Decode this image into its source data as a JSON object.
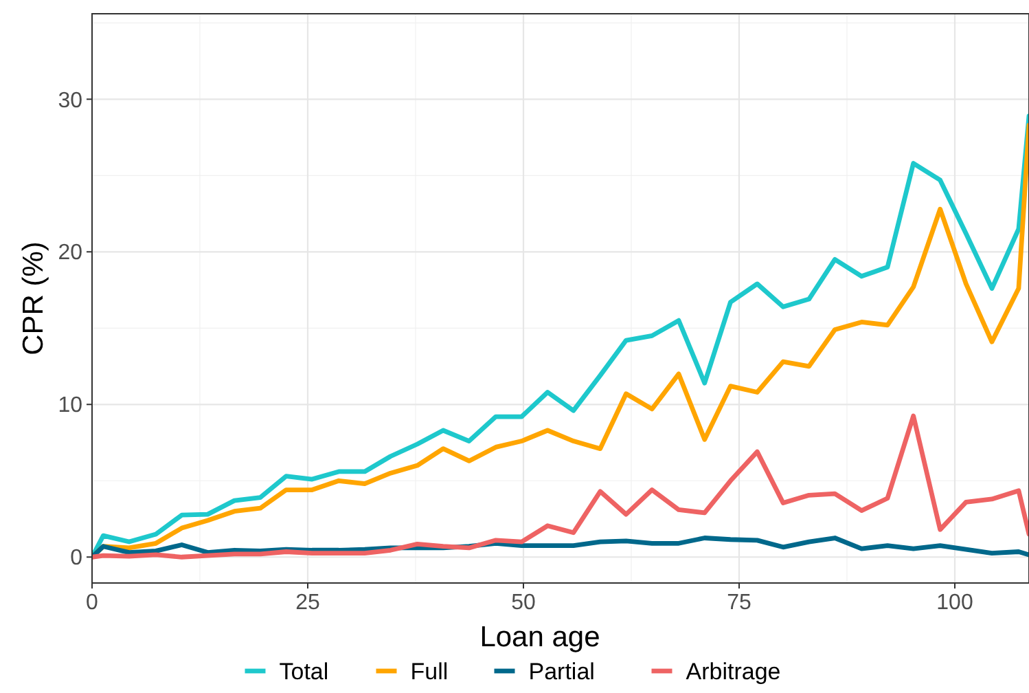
{
  "chart_data": {
    "type": "line",
    "xlabel": "Loan age",
    "ylabel": "CPR (%)",
    "x": [
      0,
      1.3,
      4.3,
      7.4,
      10.4,
      13.4,
      16.5,
      19.5,
      22.5,
      25.5,
      28.6,
      31.6,
      34.6,
      37.7,
      40.7,
      43.7,
      46.8,
      49.8,
      52.8,
      55.8,
      58.9,
      61.9,
      64.9,
      68.0,
      71.0,
      74.0,
      77.1,
      80.1,
      83.1,
      86.1,
      89.2,
      92.2,
      95.2,
      98.3,
      101.3,
      104.3,
      107.4,
      108.6
    ],
    "series": [
      {
        "name": "Total",
        "color": "#1ec8cc",
        "values": [
          0,
          1.4,
          1.0,
          1.5,
          2.75,
          2.8,
          3.7,
          3.9,
          5.3,
          5.1,
          5.6,
          5.6,
          6.6,
          7.4,
          8.3,
          7.6,
          9.2,
          9.2,
          10.8,
          9.6,
          11.9,
          14.2,
          14.5,
          15.5,
          11.4,
          16.7,
          17.9,
          16.4,
          16.9,
          19.5,
          18.4,
          19.0,
          25.8,
          24.7,
          21.2,
          17.6,
          21.5,
          28.9
        ]
      },
      {
        "name": "Full",
        "color": "#ffa500",
        "values": [
          0,
          0.7,
          0.6,
          0.9,
          1.9,
          2.4,
          3.0,
          3.2,
          4.4,
          4.4,
          5.0,
          4.8,
          5.5,
          6.0,
          7.1,
          6.3,
          7.2,
          7.6,
          8.3,
          7.6,
          7.1,
          10.7,
          9.7,
          12.0,
          7.7,
          11.2,
          10.8,
          12.8,
          12.5,
          14.9,
          15.4,
          15.2,
          17.7,
          22.8,
          17.9,
          14.1,
          17.6,
          28.3
        ]
      },
      {
        "name": "Partial",
        "color": "#00688b",
        "values": [
          0,
          0.7,
          0.3,
          0.4,
          0.8,
          0.3,
          0.45,
          0.4,
          0.5,
          0.45,
          0.45,
          0.5,
          0.6,
          0.6,
          0.6,
          0.7,
          0.9,
          0.75,
          0.75,
          0.75,
          1.0,
          1.05,
          0.9,
          0.9,
          1.25,
          1.15,
          1.1,
          0.65,
          1.0,
          1.25,
          0.55,
          0.75,
          0.55,
          0.75,
          0.5,
          0.25,
          0.35,
          0.15
        ]
      },
      {
        "name": "Arbitrage",
        "color": "#ee6363",
        "values": [
          0,
          0.1,
          0.05,
          0.15,
          0,
          0.1,
          0.2,
          0.2,
          0.35,
          0.25,
          0.25,
          0.25,
          0.45,
          0.85,
          0.7,
          0.6,
          1.1,
          1.0,
          2.05,
          1.6,
          4.3,
          2.8,
          4.4,
          3.1,
          2.9,
          5.0,
          6.9,
          3.55,
          4.05,
          4.15,
          3.05,
          3.85,
          9.25,
          1.8,
          3.6,
          3.8,
          4.35,
          1.5
        ]
      }
    ],
    "xlim": [
      0,
      108.6
    ],
    "ylim": [
      -1.7,
      35.6
    ],
    "xticks": [
      0,
      25,
      50,
      75,
      100
    ],
    "yticks": [
      0,
      10,
      20,
      30
    ],
    "grid": true,
    "legend": "bottom",
    "marker": "none",
    "line_style": "solid"
  }
}
